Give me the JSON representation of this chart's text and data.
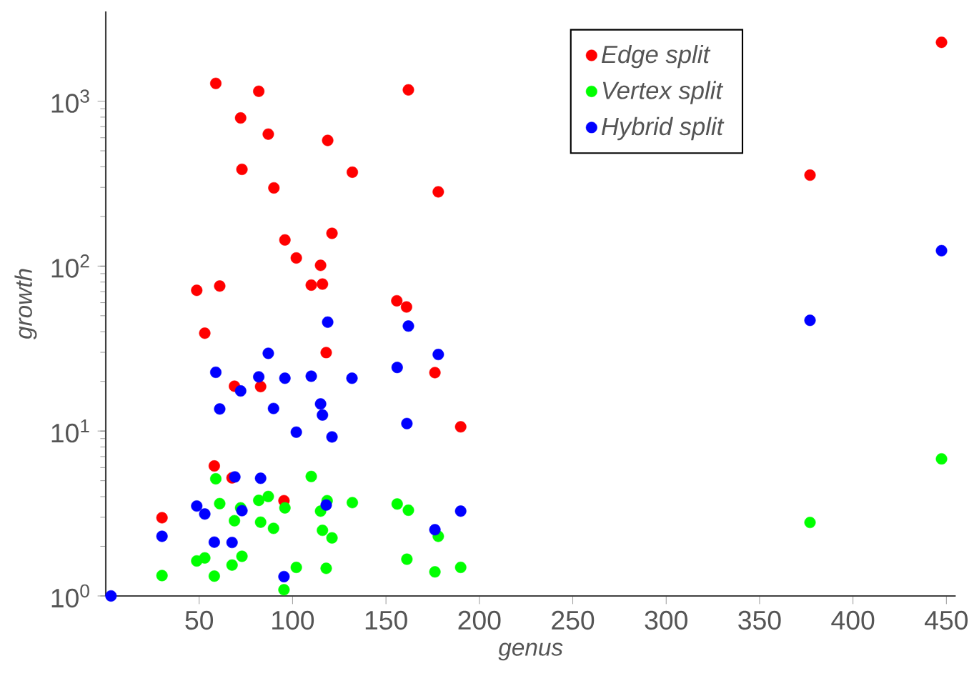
{
  "chart_data": {
    "type": "scatter",
    "xlabel": "genus",
    "ylabel": "growth",
    "xlim": [
      0,
      455
    ],
    "ylim": [
      1,
      3500
    ],
    "log": "y",
    "grid": false,
    "legend": "top right",
    "marker": "circle",
    "xticks": [
      50,
      100,
      150,
      200,
      250,
      300,
      350,
      400,
      450
    ],
    "yticks": [
      {
        "value": 1,
        "label": "10$^{0}$"
      },
      {
        "value": 10,
        "label": "10$^{1}$"
      },
      {
        "value": 100,
        "label": "10$^{2}$"
      },
      {
        "value": 1000,
        "label": "10$^{3}$"
      }
    ],
    "series": [
      {
        "name": "Edge split",
        "color": "#ff0000",
        "x": [
          58.9,
          81.9,
          72.2,
          87,
          118.8,
          72.9,
          90,
          95.9,
          121.1,
          102,
          115,
          110,
          116,
          48.7,
          61,
          53,
          162,
          132,
          178,
          155.8,
          161,
          176.2,
          190,
          118,
          68.9,
          82.9,
          58.1,
          67.6,
          30.1,
          95.4,
          377,
          447.4
        ],
        "values": [
          1282,
          1148,
          791,
          631,
          578,
          386,
          298,
          144,
          158,
          112,
          101,
          76.7,
          77.8,
          71.3,
          75.7,
          39.2,
          1170,
          371,
          282,
          61.6,
          56.5,
          22.6,
          10.6,
          29.9,
          18.7,
          18.6,
          6.14,
          5.2,
          2.98,
          3.78,
          356,
          2274
        ]
      },
      {
        "name": "Vertex split",
        "color": "#00ff00",
        "x": [
          58.9,
          110,
          61,
          72.2,
          81.9,
          87,
          95.9,
          115,
          118.5,
          68.9,
          82.9,
          89.8,
          116,
          121.1,
          48.7,
          53,
          72.9,
          67.6,
          30.1,
          58.1,
          102,
          118,
          95.4,
          132,
          156,
          162,
          178,
          161.2,
          176.2,
          190,
          377,
          447.4
        ],
        "values": [
          5.13,
          5.3,
          3.63,
          3.42,
          3.8,
          4.01,
          3.42,
          3.27,
          3.78,
          2.86,
          2.8,
          2.57,
          2.5,
          2.25,
          1.63,
          1.7,
          1.74,
          1.54,
          1.33,
          1.32,
          1.49,
          1.47,
          1.09,
          3.68,
          3.61,
          3.31,
          2.3,
          1.67,
          1.4,
          1.49,
          2.79,
          6.78
        ]
      },
      {
        "name": "Hybrid split",
        "color": "#0000ff",
        "x": [
          118.8,
          162,
          87,
          58.9,
          81.9,
          95.9,
          110,
          72.2,
          61,
          89.8,
          115,
          116,
          102,
          121.1,
          131.8,
          156,
          178,
          161.2,
          190,
          176.2,
          118,
          69.1,
          82.9,
          48.7,
          53,
          72.9,
          30.1,
          58.1,
          67.6,
          95.4,
          2.8,
          377,
          447.4
        ],
        "values": [
          45.7,
          43.3,
          29.6,
          22.7,
          21.3,
          20.9,
          21.5,
          17.5,
          13.6,
          13.7,
          14.6,
          12.5,
          9.84,
          9.21,
          20.9,
          24.3,
          29.1,
          11.1,
          3.27,
          2.52,
          3.56,
          5.27,
          5.17,
          3.51,
          3.14,
          3.29,
          2.3,
          2.12,
          2.11,
          1.31,
          1.0,
          46.9,
          124
        ]
      }
    ]
  }
}
